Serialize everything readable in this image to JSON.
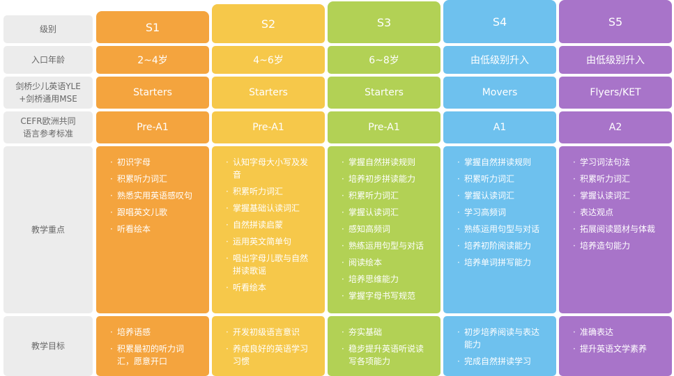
{
  "row_labels": [
    "级别",
    "入口年龄",
    "剑桥少儿英语YLE\n+剑桥通用MSE",
    "CEFR欧洲共同\n语言参考标准",
    "教学重点",
    "教学目标"
  ],
  "columns": [
    {
      "level": "S1",
      "age": "2~4岁",
      "exam": "Starters",
      "cefr": "Pre-A1",
      "focus": [
        "初识字母",
        "积累听力词汇",
        "熟悉实用英语感叹句",
        "跟唱英文儿歌",
        "听看绘本"
      ],
      "goals": [
        "培养语感",
        "积累最初的听力词汇，愿意开口"
      ]
    },
    {
      "level": "S2",
      "age": "4~6岁",
      "exam": "Starters",
      "cefr": "Pre-A1",
      "focus": [
        "认知字母大小写及发音",
        "积累听力词汇",
        "掌握基础认读词汇",
        "自然拼读启蒙",
        "运用英文简单句",
        "唱出字母儿歌与自然拼读歌谣",
        "听看绘本"
      ],
      "goals": [
        "开发初级语言意识",
        "养成良好的英语学习习惯"
      ]
    },
    {
      "level": "S3",
      "age": "6~8岁",
      "exam": "Starters",
      "cefr": "Pre-A1",
      "focus": [
        "掌握自然拼读规则",
        "培养初步拼读能力",
        "积累听力词汇",
        "掌握认读词汇",
        "感知高频词",
        "熟练运用句型与对话",
        "阅读绘本",
        "培养思维能力",
        "掌握字母书写规范"
      ],
      "goals": [
        "夯实基础",
        "稳步提升英语听说读写各项能力"
      ]
    },
    {
      "level": "S4",
      "age": "由低级别升入",
      "exam": "Movers",
      "cefr": "A1",
      "focus": [
        "掌握自然拼读规则",
        "积累听力词汇",
        "掌握认读词汇",
        "学习高频词",
        "熟练运用句型与对话",
        "培养初阶阅读能力",
        "培养单词拼写能力"
      ],
      "goals": [
        "初步培养阅读与表达能力",
        "完成自然拼读学习"
      ]
    },
    {
      "level": "S5",
      "age": "由低级别升入",
      "exam": "Flyers/KET",
      "cefr": "A2",
      "focus": [
        "学习词法句法",
        "积累听力词汇",
        "掌握认读词汇",
        "表达观点",
        "拓展阅读题材与体裁",
        "培养造句能力"
      ],
      "goals": [
        "准确表达",
        "提升英语文学素养"
      ]
    }
  ]
}
